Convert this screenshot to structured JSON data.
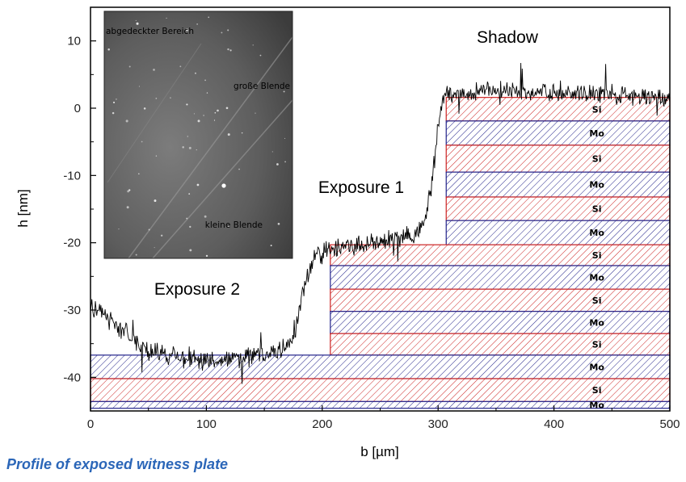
{
  "caption": "Profile of exposed witness plate",
  "chart_data": {
    "type": "line",
    "xlabel": "b [µm]",
    "ylabel": "h [nm]",
    "xlim": [
      0,
      500
    ],
    "ylim": [
      -45,
      15
    ],
    "xticks": [
      "0",
      "100",
      "200",
      "300",
      "400",
      "500"
    ],
    "yticks": [
      "10",
      "0",
      "-10",
      "-20",
      "-30",
      "-40"
    ],
    "profile_series": {
      "name": "",
      "x": [
        0,
        20,
        50,
        100,
        150,
        170,
        178,
        185,
        195,
        205,
        225,
        260,
        280,
        288,
        294,
        300,
        303,
        308,
        340,
        400,
        450,
        500
      ],
      "y": [
        -29,
        -32,
        -36,
        -37.5,
        -36.5,
        -35.5,
        -32,
        -26,
        -22,
        -21,
        -20.5,
        -19.5,
        -19,
        -17,
        -12,
        -3,
        0.5,
        2,
        2.5,
        2.5,
        2,
        1.5
      ]
    },
    "annotations": {
      "shadow": "Shadow",
      "exposure1": "Exposure 1",
      "exposure2": "Exposure 2"
    },
    "layer_stacks": [
      {
        "x0": 307,
        "x1": 500,
        "layers": [
          {
            "material": "Si",
            "top": 1.6,
            "bottom": -1.9
          },
          {
            "material": "Mo",
            "top": -1.9,
            "bottom": -5.5
          },
          {
            "material": "Si",
            "top": -5.5,
            "bottom": -9.5
          },
          {
            "material": "Mo",
            "top": -9.5,
            "bottom": -13.2
          },
          {
            "material": "Si",
            "top": -13.2,
            "bottom": -16.7
          },
          {
            "material": "Mo",
            "top": -16.7,
            "bottom": -20.3
          }
        ]
      },
      {
        "x0": 207,
        "x1": 500,
        "layers": [
          {
            "material": "Si",
            "top": -20.3,
            "bottom": -23.4
          },
          {
            "material": "Mo",
            "top": -23.4,
            "bottom": -26.9
          },
          {
            "material": "Si",
            "top": -26.9,
            "bottom": -30.2
          },
          {
            "material": "Mo",
            "top": -30.2,
            "bottom": -33.5
          },
          {
            "material": "Si",
            "top": -33.5,
            "bottom": -36.7
          }
        ]
      },
      {
        "x0": 0,
        "x1": 500,
        "layers": [
          {
            "material": "Mo",
            "top": -36.7,
            "bottom": -40.2
          },
          {
            "material": "Si",
            "top": -40.2,
            "bottom": -43.6
          },
          {
            "material": "Mo",
            "top": -43.6,
            "bottom": -44.6
          }
        ]
      }
    ],
    "colors": {
      "Si": "#cc2222",
      "Mo": "#22228a"
    },
    "inset": {
      "labels": [
        "abgedeckter Bereich",
        "große Blende",
        "kleine Blende"
      ]
    }
  }
}
